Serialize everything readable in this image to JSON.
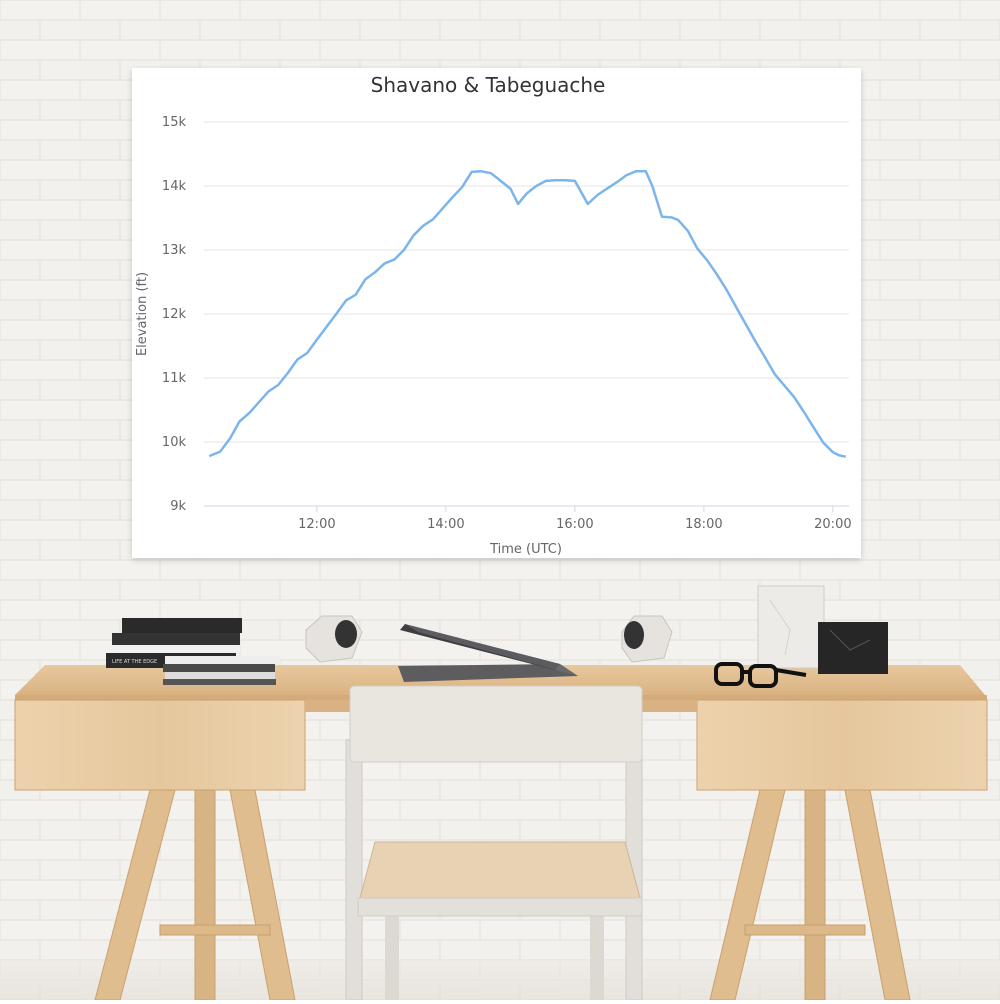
{
  "chart_data": {
    "type": "line",
    "title": "Shavano & Tabeguache",
    "xlabel": "Time (UTC)",
    "ylabel": "Elevation (ft)",
    "xlim": [
      10.25,
      20.25
    ],
    "ylim": [
      9000,
      15000
    ],
    "x_ticks": [
      {
        "value": 12,
        "label": "12:00"
      },
      {
        "value": 14,
        "label": "14:00"
      },
      {
        "value": 16,
        "label": "16:00"
      },
      {
        "value": 18,
        "label": "18:00"
      },
      {
        "value": 20,
        "label": "20:00"
      }
    ],
    "y_ticks": [
      {
        "value": 9000,
        "label": "9k"
      },
      {
        "value": 10000,
        "label": "10k"
      },
      {
        "value": 11000,
        "label": "11k"
      },
      {
        "value": 12000,
        "label": "12k"
      },
      {
        "value": 13000,
        "label": "13k"
      },
      {
        "value": 14000,
        "label": "14k"
      },
      {
        "value": 15000,
        "label": "15k"
      }
    ],
    "grid": true,
    "legend": false,
    "line_color": "#7cb5ec",
    "series": [
      {
        "x": [
          10.33,
          10.5,
          10.65,
          10.8,
          10.95,
          11.1,
          11.25,
          11.4,
          11.55,
          11.7,
          11.85,
          12.0,
          12.15,
          12.3,
          12.45,
          12.6,
          12.75,
          12.9,
          13.05,
          13.2,
          13.35,
          13.5,
          13.65,
          13.8,
          13.95,
          14.1,
          14.25,
          14.4,
          14.55,
          14.7,
          14.85,
          15.0,
          15.12,
          15.25,
          15.4,
          15.55,
          15.7,
          15.85,
          16.0,
          16.1,
          16.2,
          16.35,
          16.5,
          16.65,
          16.8,
          16.95,
          17.1,
          17.2,
          17.35,
          17.5,
          17.6,
          17.75,
          17.9,
          18.05,
          18.2,
          18.35,
          18.5,
          18.65,
          18.8,
          18.95,
          19.1,
          19.25,
          19.4,
          19.55,
          19.7,
          19.85,
          20.0,
          20.1,
          20.2
        ],
        "y": [
          9780,
          9850,
          10050,
          10320,
          10450,
          10620,
          10790,
          10890,
          11080,
          11290,
          11390,
          11600,
          11800,
          12000,
          12210,
          12300,
          12540,
          12650,
          12790,
          12850,
          13000,
          13230,
          13380,
          13480,
          13650,
          13820,
          13980,
          14220,
          14230,
          14200,
          14080,
          13960,
          13720,
          13880,
          14000,
          14080,
          14090,
          14090,
          14080,
          13900,
          13720,
          13860,
          13960,
          14060,
          14170,
          14230,
          14230,
          14000,
          13520,
          13510,
          13470,
          13300,
          13020,
          12840,
          12620,
          12380,
          12110,
          11840,
          11570,
          11320,
          11060,
          10880,
          10700,
          10470,
          10230,
          9990,
          9840,
          9790,
          9770
        ]
      }
    ]
  }
}
